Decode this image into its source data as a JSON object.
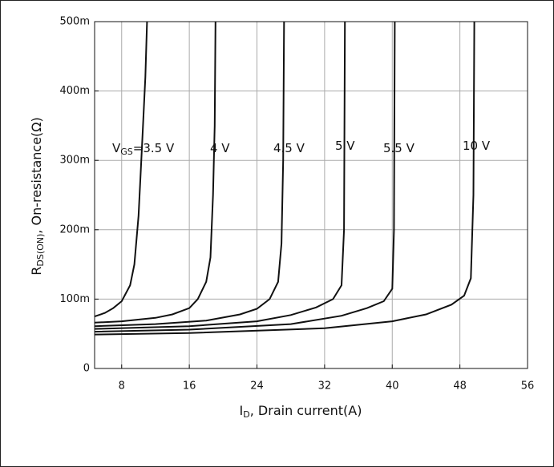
{
  "chart_data": {
    "type": "line",
    "x_label": {
      "main": "I",
      "sub": "D",
      "rest": ", Drain current(A)"
    },
    "y_label": {
      "main": "R",
      "sub": "DS(ON)",
      "rest": ", On-resistance(Ω)"
    },
    "label_prefix": {
      "main": "V",
      "sub": "GS"
    },
    "xlim": [
      4.8,
      56
    ],
    "xticks": [
      8,
      16,
      24,
      32,
      40,
      48,
      56
    ],
    "ylim": [
      0,
      0.5
    ],
    "yticks": [
      0,
      {
        "value": 0.1,
        "label": "100m"
      },
      {
        "value": 0.2,
        "label": "200m"
      },
      {
        "value": 0.3,
        "label": "300m"
      },
      {
        "value": 0.4,
        "label": "400m"
      },
      {
        "value": 0.5,
        "label": "500m"
      }
    ],
    "grid": true,
    "series": [
      {
        "name": "=3.5 V",
        "color": "#111111",
        "x": [
          4.8,
          6,
          7,
          8,
          9,
          9.5,
          10,
          10.4,
          10.8,
          11.0
        ],
        "values": [
          0.075,
          0.08,
          0.087,
          0.097,
          0.12,
          0.15,
          0.22,
          0.32,
          0.42,
          0.5
        ]
      },
      {
        "name": "4 V",
        "color": "#111111",
        "x": [
          4.8,
          8,
          12,
          14,
          16,
          17,
          18,
          18.5,
          18.8,
          19,
          19.1
        ],
        "values": [
          0.066,
          0.068,
          0.073,
          0.078,
          0.087,
          0.1,
          0.125,
          0.16,
          0.25,
          0.35,
          0.5
        ]
      },
      {
        "name": "4.5 V",
        "color": "#111111",
        "x": [
          4.8,
          12,
          18,
          22,
          24,
          25.5,
          26.5,
          26.9,
          27.1,
          27.2
        ],
        "values": [
          0.061,
          0.064,
          0.069,
          0.078,
          0.086,
          0.1,
          0.125,
          0.18,
          0.3,
          0.5
        ]
      },
      {
        "name": "5 V",
        "color": "#111111",
        "x": [
          4.8,
          16,
          24,
          28,
          31,
          33,
          34,
          34.3,
          34.4
        ],
        "values": [
          0.057,
          0.061,
          0.068,
          0.077,
          0.088,
          0.1,
          0.12,
          0.2,
          0.5
        ]
      },
      {
        "name": "5.5 V",
        "color": "#111111",
        "x": [
          4.8,
          16,
          28,
          34,
          37,
          39,
          40,
          40.2,
          40.3
        ],
        "values": [
          0.053,
          0.056,
          0.064,
          0.076,
          0.087,
          0.097,
          0.115,
          0.2,
          0.5
        ]
      },
      {
        "name": "10 V",
        "color": "#111111",
        "x": [
          4.8,
          16,
          32,
          40,
          44,
          47,
          48.5,
          49.3,
          49.6,
          49.7
        ],
        "values": [
          0.049,
          0.051,
          0.058,
          0.068,
          0.078,
          0.092,
          0.105,
          0.13,
          0.25,
          0.5
        ]
      }
    ]
  }
}
